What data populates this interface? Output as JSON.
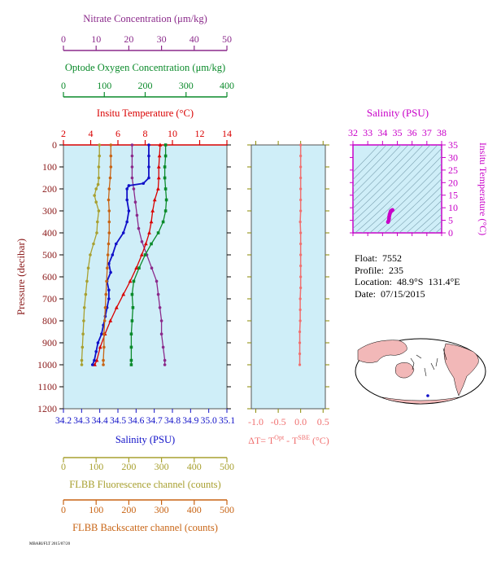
{
  "colors": {
    "nitrate": "#8b2a8b",
    "oxygen": "#0a8a2a",
    "temperature": "#d90000",
    "salinity": "#1010c8",
    "fluorescence": "#a8a030",
    "backscatter": "#c86414",
    "dt": "#f07070",
    "ts_axis": "#c800c8",
    "panel_fill": "#cfeef8"
  },
  "chart_data": [
    {
      "type": "line",
      "panel": "profiles",
      "ylabel": "Pressure (decibar)",
      "ylim": [
        0,
        1200
      ],
      "y_ticks": [
        0,
        100,
        200,
        300,
        400,
        500,
        600,
        700,
        800,
        900,
        1000,
        1100,
        1200
      ],
      "axes": {
        "nitrate": {
          "label": "Nitrate Concentration (μm/kg)",
          "range": [
            0,
            50
          ],
          "ticks": [
            "0",
            "10",
            "20",
            "30",
            "40",
            "50"
          ]
        },
        "oxygen": {
          "label": "Optode Oxygen Concentration (μm/kg)",
          "range": [
            0,
            400
          ],
          "ticks": [
            "0",
            "100",
            "200",
            "300",
            "400"
          ]
        },
        "temperature": {
          "label": "Insitu Temperature (°C)",
          "range": [
            2,
            14
          ],
          "ticks": [
            "2",
            "4",
            "6",
            "8",
            "10",
            "12",
            "14"
          ]
        },
        "salinity": {
          "label": "Salinity (PSU)",
          "range": [
            34.2,
            35.1
          ],
          "ticks": [
            "34.2",
            "34.3",
            "34.4",
            "34.5",
            "34.6",
            "34.7",
            "34.8",
            "34.9",
            "35.0",
            "35.1"
          ]
        },
        "fluorescence": {
          "label": "FLBB Fluorescence channel (counts)",
          "range": [
            0,
            500
          ],
          "ticks": [
            "0",
            "100",
            "200",
            "300",
            "400",
            "500"
          ]
        },
        "backscatter": {
          "label": "FLBB Backscatter channel (counts)",
          "range": [
            0,
            500
          ],
          "ticks": [
            "0",
            "100",
            "200",
            "300",
            "400",
            "500"
          ]
        }
      },
      "series": [
        {
          "name": "Nitrate",
          "axis": "nitrate",
          "marker": "circle",
          "points": [
            [
              21,
              0
            ],
            [
              21,
              50
            ],
            [
              21,
              100
            ],
            [
              21,
              150
            ],
            [
              21.5,
              200
            ],
            [
              22,
              260
            ],
            [
              22.5,
              320
            ],
            [
              23,
              380
            ],
            [
              24,
              440
            ],
            [
              25.5,
              500
            ],
            [
              27,
              560
            ],
            [
              28.5,
              620
            ],
            [
              29,
              680
            ],
            [
              29.5,
              740
            ],
            [
              30,
              800
            ],
            [
              30,
              860
            ],
            [
              30.5,
              920
            ],
            [
              31,
              980
            ],
            [
              31,
              1000
            ]
          ]
        },
        {
          "name": "Oxygen",
          "axis": "oxygen",
          "marker": "square",
          "points": [
            [
              250,
              0
            ],
            [
              250,
              50
            ],
            [
              248,
              100
            ],
            [
              248,
              150
            ],
            [
              250,
              200
            ],
            [
              252,
              250
            ],
            [
              250,
              300
            ],
            [
              244,
              350
            ],
            [
              232,
              400
            ],
            [
              215,
              450
            ],
            [
              200,
              500
            ],
            [
              185,
              560
            ],
            [
              172,
              620
            ],
            [
              168,
              680
            ],
            [
              170,
              740
            ],
            [
              168,
              800
            ],
            [
              166,
              860
            ],
            [
              166,
              920
            ],
            [
              166,
              980
            ],
            [
              166,
              1000
            ]
          ]
        },
        {
          "name": "Temperature",
          "axis": "temperature",
          "marker": "triangle",
          "points": [
            [
              9.1,
              0
            ],
            [
              9.05,
              50
            ],
            [
              9.0,
              100
            ],
            [
              9.0,
              150
            ],
            [
              8.95,
              200
            ],
            [
              8.7,
              250
            ],
            [
              8.55,
              300
            ],
            [
              8.45,
              350
            ],
            [
              8.3,
              400
            ],
            [
              8.05,
              450
            ],
            [
              7.75,
              500
            ],
            [
              7.35,
              560
            ],
            [
              6.9,
              620
            ],
            [
              6.4,
              680
            ],
            [
              5.9,
              740
            ],
            [
              5.45,
              800
            ],
            [
              5.05,
              860
            ],
            [
              4.7,
              920
            ],
            [
              4.45,
              980
            ],
            [
              4.3,
              1000
            ]
          ]
        },
        {
          "name": "Salinity",
          "axis": "salinity",
          "marker": "circle",
          "points": [
            [
              34.67,
              0
            ],
            [
              34.67,
              50
            ],
            [
              34.67,
              100
            ],
            [
              34.67,
              150
            ],
            [
              34.64,
              175
            ],
            [
              34.56,
              185
            ],
            [
              34.55,
              200
            ],
            [
              34.55,
              250
            ],
            [
              34.56,
              300
            ],
            [
              34.55,
              350
            ],
            [
              34.53,
              400
            ],
            [
              34.49,
              450
            ],
            [
              34.47,
              500
            ],
            [
              34.45,
              540
            ],
            [
              34.46,
              580
            ],
            [
              34.44,
              620
            ],
            [
              34.45,
              660
            ],
            [
              34.45,
              700
            ],
            [
              34.44,
              740
            ],
            [
              34.43,
              780
            ],
            [
              34.42,
              820
            ],
            [
              34.41,
              860
            ],
            [
              34.39,
              900
            ],
            [
              34.38,
              940
            ],
            [
              34.37,
              980
            ],
            [
              34.36,
              1000
            ]
          ]
        },
        {
          "name": "FLBB Fluorescence",
          "axis": "fluorescence",
          "marker": "circle",
          "points": [
            [
              110,
              0
            ],
            [
              110,
              50
            ],
            [
              108,
              100
            ],
            [
              108,
              150
            ],
            [
              106,
              180
            ],
            [
              100,
              200
            ],
            [
              95,
              230
            ],
            [
              100,
              260
            ],
            [
              108,
              300
            ],
            [
              104,
              350
            ],
            [
              102,
              400
            ],
            [
              92,
              450
            ],
            [
              82,
              500
            ],
            [
              76,
              560
            ],
            [
              72,
              620
            ],
            [
              68,
              680
            ],
            [
              64,
              740
            ],
            [
              62,
              800
            ],
            [
              60,
              860
            ],
            [
              58,
              920
            ],
            [
              56,
              980
            ],
            [
              56,
              1000
            ]
          ]
        },
        {
          "name": "FLBB Backscatter",
          "axis": "backscatter",
          "marker": "circle",
          "points": [
            [
              145,
              0
            ],
            [
              145,
              50
            ],
            [
              145,
              100
            ],
            [
              143,
              150
            ],
            [
              140,
              200
            ],
            [
              138,
              250
            ],
            [
              140,
              300
            ],
            [
              140,
              350
            ],
            [
              140,
              400
            ],
            [
              138,
              450
            ],
            [
              136,
              500
            ],
            [
              134,
              560
            ],
            [
              132,
              620
            ],
            [
              130,
              680
            ],
            [
              128,
              740
            ],
            [
              126,
              800
            ],
            [
              124,
              860
            ],
            [
              124,
              920
            ],
            [
              122,
              980
            ],
            [
              122,
              1000
            ]
          ]
        }
      ]
    },
    {
      "type": "line",
      "panel": "delta-t",
      "xlabel": "ΔT= T",
      "xlabel_sup1": "Opt",
      "xlabel_mid": " - T",
      "xlabel_sup2": "SBE",
      "xlabel_unit": " (°C)",
      "xlim": [
        -1.1,
        0.55
      ],
      "x_ticks": [
        "-1.0",
        "-0.5",
        "0.0",
        "0.5"
      ],
      "ylim": [
        0,
        1200
      ],
      "points": [
        [
          0.0,
          0
        ],
        [
          0.0,
          50
        ],
        [
          0.0,
          100
        ],
        [
          0.0,
          150
        ],
        [
          0.0,
          200
        ],
        [
          0.0,
          250
        ],
        [
          0.0,
          300
        ],
        [
          -0.01,
          350
        ],
        [
          0.0,
          400
        ],
        [
          0.0,
          450
        ],
        [
          0.0,
          500
        ],
        [
          0.0,
          550
        ],
        [
          0.0,
          600
        ],
        [
          0.0,
          650
        ],
        [
          -0.01,
          700
        ],
        [
          -0.01,
          750
        ],
        [
          -0.01,
          800
        ],
        [
          -0.02,
          850
        ],
        [
          -0.02,
          900
        ],
        [
          -0.02,
          950
        ],
        [
          -0.02,
          1000
        ]
      ]
    },
    {
      "type": "scatter",
      "panel": "ts-diagram",
      "title": "Salinity (PSU)",
      "xlim": [
        32,
        38
      ],
      "x_ticks": [
        "32",
        "33",
        "34",
        "35",
        "36",
        "37",
        "38"
      ],
      "ylabel": "Insitu Temperature (°C)",
      "ylim": [
        0,
        35
      ],
      "y_ticks": [
        "0",
        "5",
        "10",
        "15",
        "20",
        "25",
        "30",
        "35"
      ],
      "points": [
        [
          34.67,
          9.1
        ],
        [
          34.67,
          9.0
        ],
        [
          34.62,
          8.9
        ],
        [
          34.56,
          8.7
        ],
        [
          34.55,
          8.4
        ],
        [
          34.52,
          8.0
        ],
        [
          34.48,
          7.3
        ],
        [
          34.45,
          6.5
        ],
        [
          34.44,
          5.6
        ],
        [
          34.41,
          4.8
        ],
        [
          34.37,
          4.3
        ]
      ]
    }
  ],
  "float_info": {
    "float": "Float:  7552",
    "profile": "Profile:  235",
    "location": "Location:  48.9°S  131.4°E",
    "date": "Date:  07/15/2015"
  },
  "footer": "MBARI/FLT 2015/07/20"
}
